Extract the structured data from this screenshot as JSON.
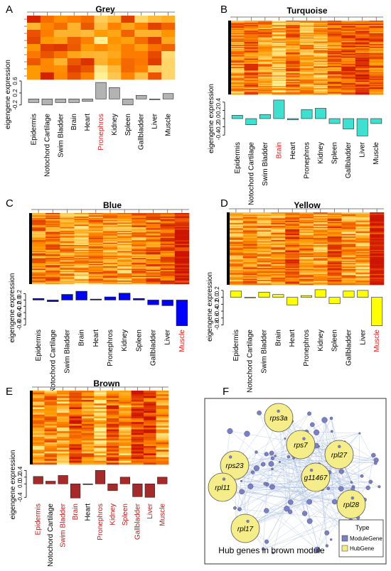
{
  "figure": {
    "tissues": [
      "Epidermis",
      "Notochord Cartilage",
      "Swim Bladder",
      "Brain",
      "Heart",
      "Pronephros",
      "Kidney",
      "Spleen",
      "Gallbladder",
      "Liver",
      "Muscle"
    ],
    "ylabel": "eigengene  expression"
  },
  "chart_data": [
    {
      "type": "bar",
      "letter": "A",
      "title": "Grey",
      "color": "#b3b3b3",
      "categories": [
        "Epidermis",
        "Notochord Cartilage",
        "Swim Bladder",
        "Brain",
        "Heart",
        "Pronephros",
        "Kidney",
        "Spleen",
        "Gallbladder",
        "Liver",
        "Muscle"
      ],
      "values": [
        -0.12,
        -0.2,
        -0.12,
        -0.12,
        -0.08,
        0.55,
        0.38,
        -0.2,
        0.12,
        -0.02,
        0.18
      ],
      "ylim": [
        -0.3,
        0.6
      ],
      "yticks": [
        -0.2,
        0.2,
        0.6
      ],
      "ytick_labels": [
        "-0.2",
        "0.2",
        "0.6"
      ],
      "highlight": [
        "Pronephros"
      ],
      "ylabel": "eigengene  expression"
    },
    {
      "type": "bar",
      "letter": "B",
      "title": "Turquoise",
      "color": "#40e0d0",
      "categories": [
        "Epidermis",
        "Notochord Cartilage",
        "Swim Bladder",
        "Brain",
        "Heart",
        "Pronephros",
        "Kidney",
        "Spleen",
        "Gallbladder",
        "Liver",
        "Muscle"
      ],
      "values": [
        0.08,
        -0.15,
        0.1,
        0.45,
        -0.03,
        0.22,
        0.25,
        -0.12,
        -0.25,
        -0.42,
        -0.12
      ],
      "ylim": [
        -0.5,
        0.5
      ],
      "yticks": [
        -0.4,
        -0.2,
        0.0,
        0.2,
        0.4
      ],
      "ytick_labels": [
        "-0.4",
        "-0.2",
        "0.0",
        "0.2",
        "0.4"
      ],
      "highlight": [
        "Brain"
      ],
      "ylabel": "eigengene  expression"
    },
    {
      "type": "bar",
      "letter": "C",
      "title": "Blue",
      "color": "#0000ff",
      "categories": [
        "Epidermis",
        "Notochord Cartilage",
        "Swim Bladder",
        "Brain",
        "Heart",
        "Pronephros",
        "Kidney",
        "Spleen",
        "Gallbladder",
        "Liver",
        "Muscle"
      ],
      "values": [
        0.05,
        -0.05,
        0.18,
        0.28,
        0.03,
        0.1,
        0.22,
        0.05,
        -0.15,
        -0.18,
        -0.82
      ],
      "ylim": [
        -0.85,
        0.35
      ],
      "yticks": [
        -0.8,
        -0.6,
        -0.4,
        -0.2,
        0.0,
        0.2
      ],
      "ytick_labels": [
        "-0.8",
        "-0.6",
        "-0.4",
        "-0.2",
        "0.0",
        "0.2"
      ],
      "highlight": [
        "Muscle"
      ],
      "ylabel": "eigengene  expression"
    },
    {
      "type": "bar",
      "letter": "D",
      "title": "Yellow",
      "color": "#ffff00",
      "categories": [
        "Epidermis",
        "Notochord Cartilage",
        "Swim Bladder",
        "Brain",
        "Heart",
        "Pronephros",
        "Kidney",
        "Spleen",
        "Gallbladder",
        "Liver",
        "Muscle"
      ],
      "values": [
        0.18,
        -0.02,
        0.15,
        0.08,
        -0.22,
        0.05,
        0.22,
        -0.18,
        0.18,
        0.2,
        -0.82
      ],
      "ylim": [
        -0.85,
        0.3
      ],
      "yticks": [
        -0.8,
        -0.6,
        -0.4,
        -0.2,
        0.0,
        0.2
      ],
      "ytick_labels": [
        "-0.8",
        "-0.6",
        "-0.4",
        "-0.2",
        "0.0",
        "0.2"
      ],
      "highlight": [
        "Muscle"
      ],
      "ylabel": "eigengene  expression"
    },
    {
      "type": "bar",
      "letter": "E",
      "title": "Brown",
      "color": "#a52a2a",
      "categories": [
        "Epidermis",
        "Notochord Cartilage",
        "Swim Bladder",
        "Brain",
        "Heart",
        "Pronephros",
        "Kidney",
        "Spleen",
        "Gallbladder",
        "Liver",
        "Muscle"
      ],
      "values": [
        0.22,
        0.08,
        0.25,
        -0.42,
        -0.02,
        0.4,
        -0.2,
        0.2,
        -0.38,
        -0.4,
        0.2
      ],
      "ylim": [
        -0.5,
        0.45
      ],
      "yticks": [
        -0.4,
        0.0,
        0.2,
        0.4
      ],
      "ytick_labels": [
        "-0.4",
        "0.0",
        "0.2",
        "0.4"
      ],
      "highlight": [
        "Epidermis",
        "Swim Bladder",
        "Brain",
        "Pronephros",
        "Kidney",
        "Spleen",
        "Gallbladder",
        "Liver",
        "Muscle"
      ],
      "ylabel": "eigengene  expression"
    }
  ],
  "network": {
    "letter": "F",
    "caption": "Hub genes in brown module",
    "hub_genes": [
      "rps3a",
      "rps7",
      "rpl27",
      "g11467",
      "rps23",
      "rpl11",
      "rpl28",
      "rpl17"
    ],
    "legend": {
      "title": "Type",
      "items": [
        "ModuleGene",
        "HubGene"
      ]
    },
    "hub_color": "#f5ec8a",
    "module_color": "#7a80c8"
  }
}
